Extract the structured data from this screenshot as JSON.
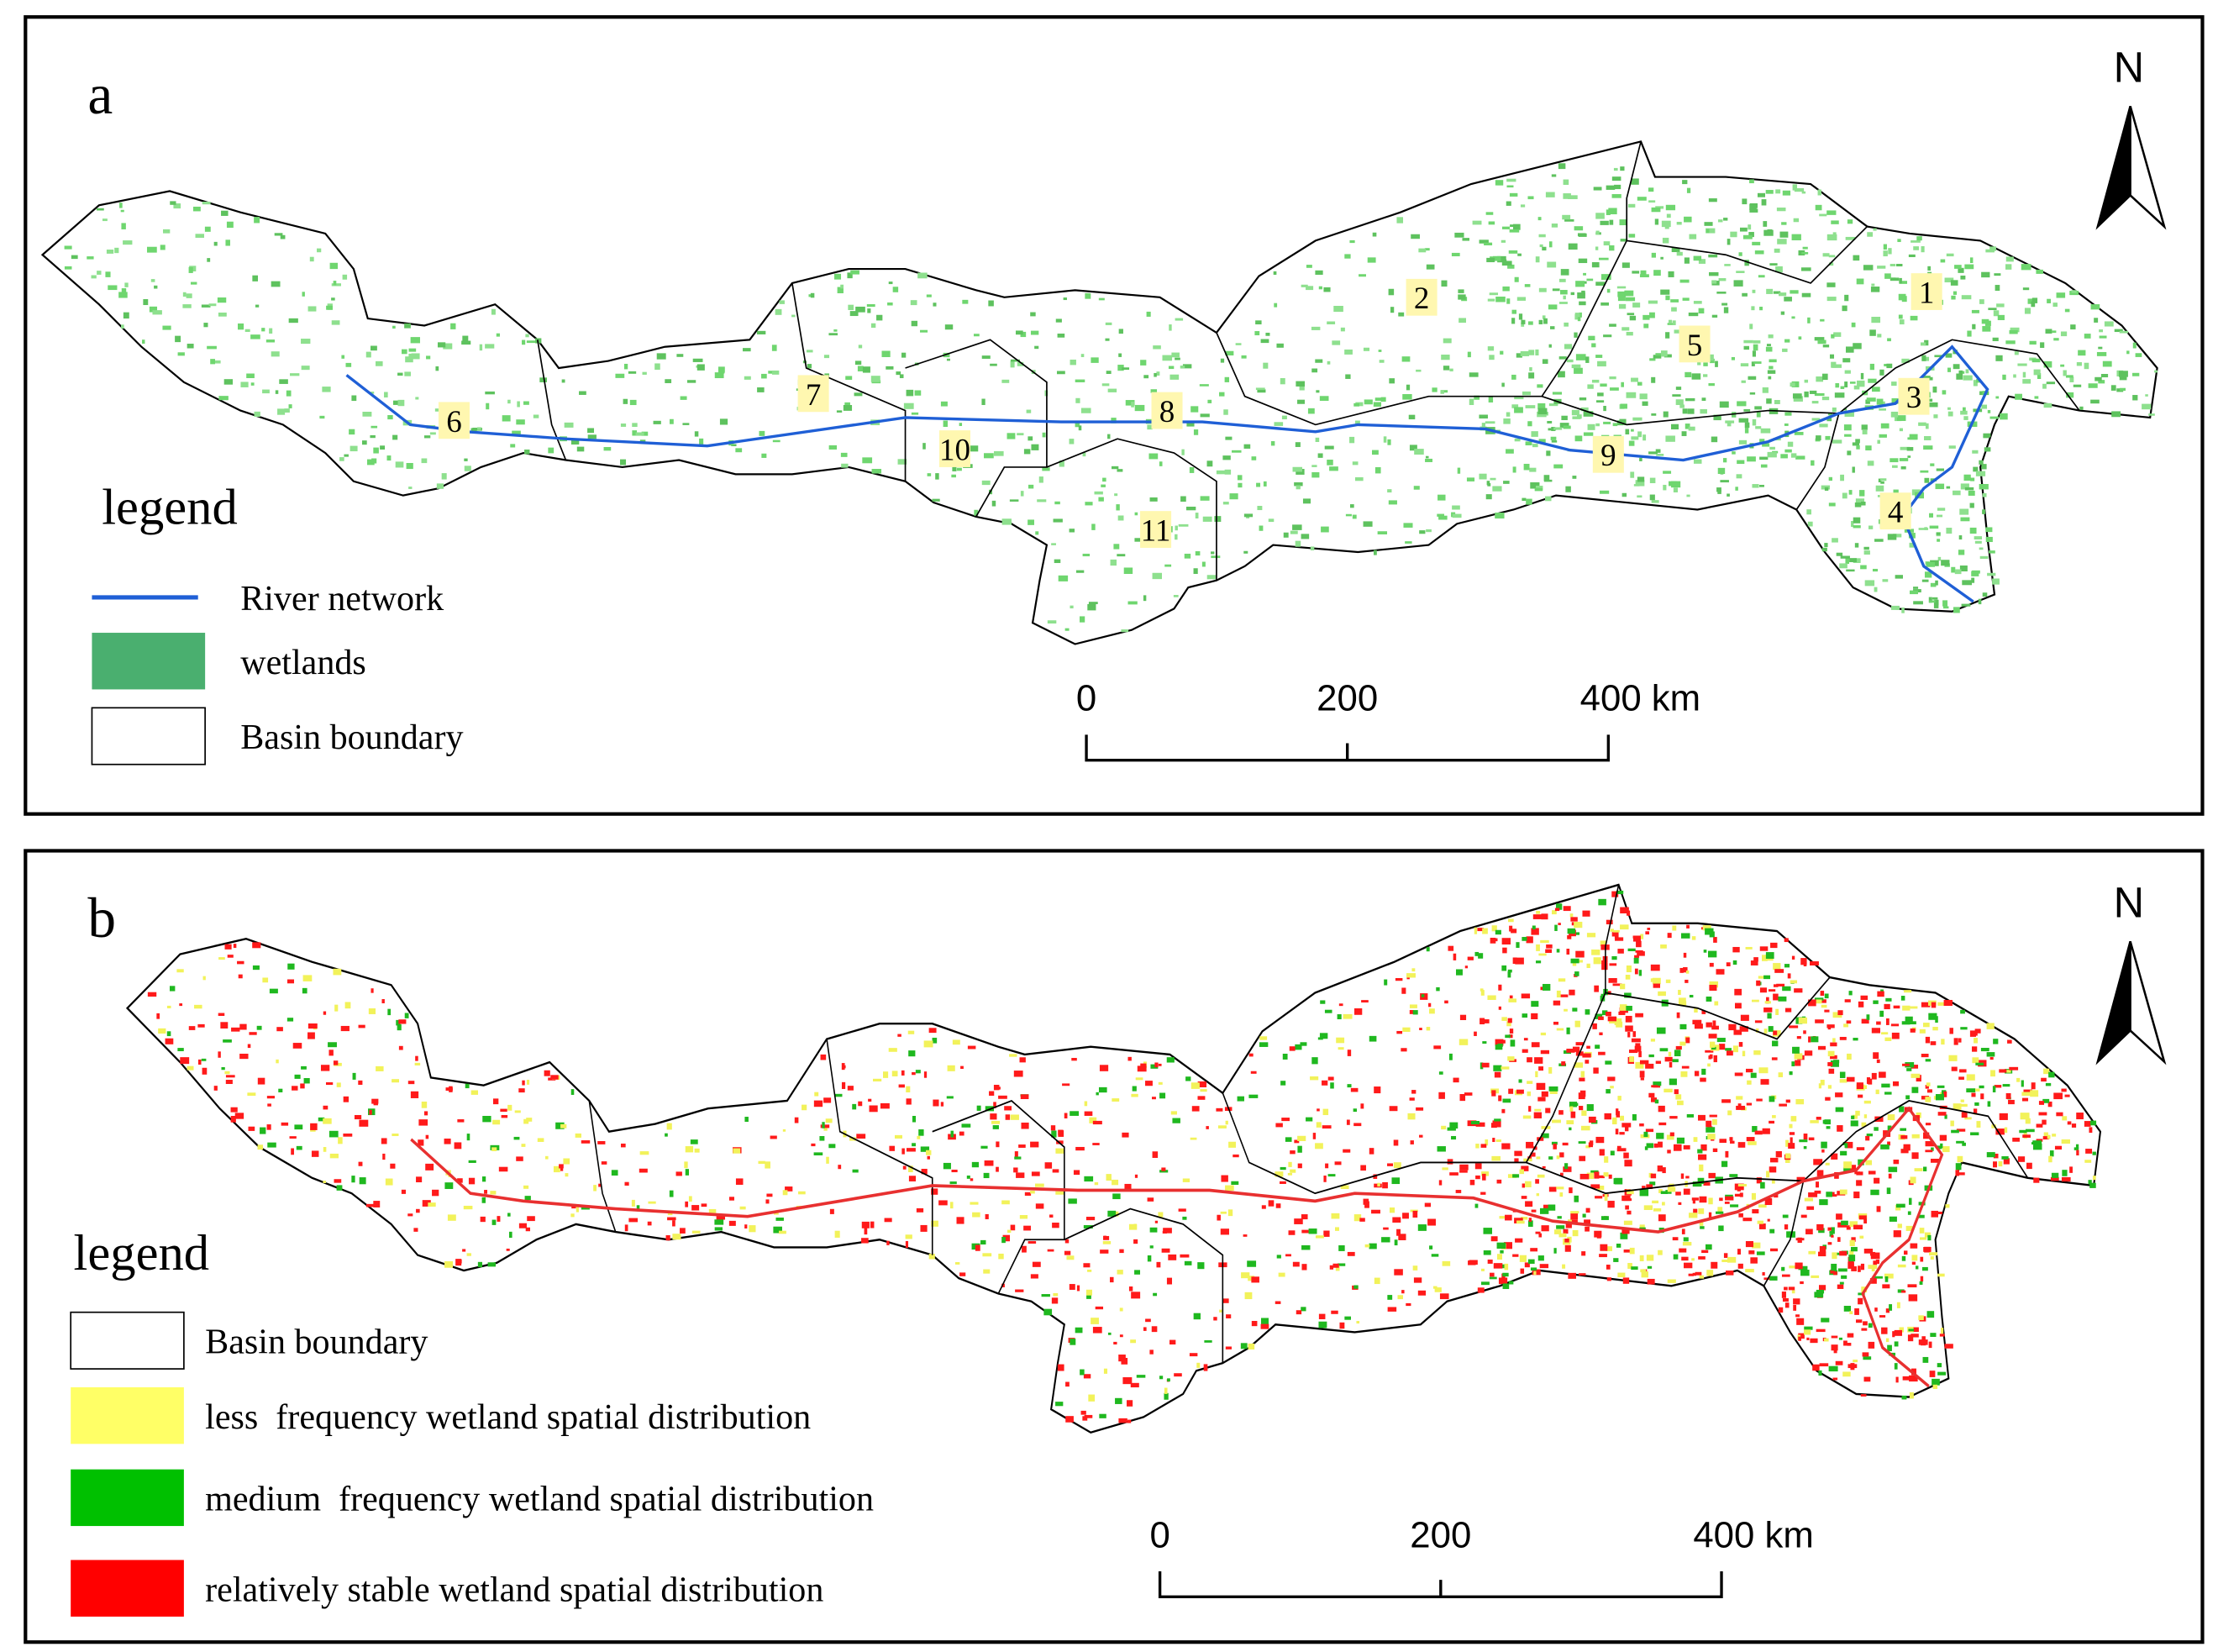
{
  "panels": [
    {
      "label": "a",
      "legend_title": "legend",
      "legend": [
        {
          "label": "River network",
          "color": "#1f5fd6"
        },
        {
          "label": "wetlands",
          "color": "#4aaf6f"
        },
        {
          "label": "Basin boundary",
          "color": "#ffffff"
        }
      ],
      "basins": [
        "1",
        "2",
        "3",
        "4",
        "5",
        "6",
        "7",
        "8",
        "9",
        "10",
        "11"
      ],
      "scale": [
        "0",
        "200",
        "400 km"
      ],
      "north": "N"
    },
    {
      "label": "b",
      "legend_title": "legend",
      "legend": [
        {
          "label": "Basin boundary",
          "color": "#ffffff"
        },
        {
          "label": "less  frequency wetland spatial distribution",
          "color": "#ffff66"
        },
        {
          "label": "medium  frequency wetland spatial distribution",
          "color": "#00c000"
        },
        {
          "label": "relatively stable wetland spatial distribution",
          "color": "#ff0000"
        }
      ],
      "scale": [
        "0",
        "200",
        "400 km"
      ],
      "north": "N"
    }
  ]
}
